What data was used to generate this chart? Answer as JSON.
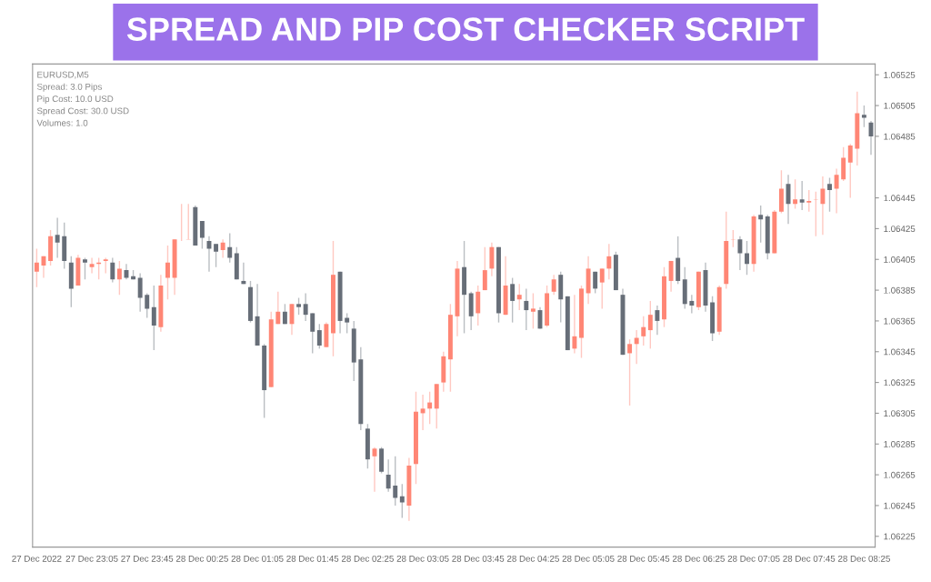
{
  "chart_data": {
    "type": "candlestick",
    "title": "SPREAD AND PIP COST CHECKER SCRIPT",
    "annotations": [
      "EURUSD,M5",
      "Spread: 3.0 Pips",
      "Pip Cost: 10.0 USD",
      "Spread Cost: 30.0 USD",
      "Volumes: 1.0"
    ],
    "categories": [
      "27 Dec 2022",
      null,
      null,
      null,
      null,
      null,
      null,
      null,
      "27 Dec 23:05",
      null,
      null,
      null,
      null,
      null,
      null,
      null,
      "27 Dec 23:45",
      null,
      null,
      null,
      null,
      null,
      null,
      null,
      "28 Dec 00:25",
      null,
      null,
      null,
      null,
      null,
      null,
      null,
      "28 Dec 01:05",
      null,
      null,
      null,
      null,
      null,
      null,
      null,
      "28 Dec 01:45",
      null,
      null,
      null,
      null,
      null,
      null,
      null,
      "28 Dec 02:25",
      null,
      null,
      null,
      null,
      null,
      null,
      null,
      "28 Dec 03:05",
      null,
      null,
      null,
      null,
      null,
      null,
      null,
      "28 Dec 03:45",
      null,
      null,
      null,
      null,
      null,
      null,
      null,
      "28 Dec 04:25",
      null,
      null,
      null,
      null,
      null,
      null,
      null,
      "28 Dec 05:05",
      null,
      null,
      null,
      null,
      null,
      null,
      null,
      "28 Dec 05:45",
      null,
      null,
      null,
      null,
      null,
      null,
      null,
      "28 Dec 06:25",
      null,
      null,
      null,
      null,
      null,
      null,
      null,
      "28 Dec 07:05",
      null,
      null,
      null,
      null,
      null,
      null,
      null,
      "28 Dec 07:45",
      null,
      null,
      null,
      null,
      null,
      null,
      null,
      "28 Dec 08:25",
      null
    ],
    "ohlc": [
      [
        1.06397,
        1.06412,
        1.06387,
        1.06403
      ],
      [
        1.06401,
        1.06407,
        1.06393,
        1.06407
      ],
      [
        1.06404,
        1.06424,
        1.06401,
        1.0642
      ],
      [
        1.06421,
        1.06432,
        1.06406,
        1.06416
      ],
      [
        1.0642,
        1.06429,
        1.06399,
        1.06404
      ],
      [
        1.06403,
        1.06407,
        1.06374,
        1.06386
      ],
      [
        1.06388,
        1.06408,
        1.06388,
        1.06406
      ],
      [
        1.06405,
        1.06406,
        1.06392,
        1.06403
      ],
      [
        1.064,
        1.06406,
        1.06396,
        1.06402
      ],
      [
        1.06402,
        1.06406,
        1.06392,
        1.06403
      ],
      [
        1.06404,
        1.06406,
        1.06396,
        1.06405
      ],
      [
        1.06403,
        1.06406,
        1.0639,
        1.06392
      ],
      [
        1.06392,
        1.06404,
        1.06382,
        1.06399
      ],
      [
        1.06398,
        1.06402,
        1.06392,
        1.06393
      ],
      [
        1.06394,
        1.06398,
        1.06392,
        1.06392
      ],
      [
        1.06393,
        1.06396,
        1.06371,
        1.0638
      ],
      [
        1.06382,
        1.06383,
        1.06367,
        1.06373
      ],
      [
        1.06374,
        1.06388,
        1.06346,
        1.06362
      ],
      [
        1.06361,
        1.06395,
        1.06358,
        1.06388
      ],
      [
        1.06393,
        1.06414,
        1.06379,
        1.06403
      ],
      [
        1.06393,
        1.06418,
        1.06382,
        1.06418
      ],
      [
        1.06441,
        1.06441,
        1.06417,
        1.06441
      ],
      [
        1.06418,
        1.06441,
        1.06418,
        1.06418
      ],
      [
        1.06439,
        1.0644,
        1.06414,
        1.06414
      ],
      [
        1.0643,
        1.0643,
        1.06412,
        1.06419
      ],
      [
        1.06417,
        1.0642,
        1.06397,
        1.06412
      ],
      [
        1.06415,
        1.06415,
        1.064,
        1.0641
      ],
      [
        1.06411,
        1.06418,
        1.06406,
        1.06416
      ],
      [
        1.06413,
        1.06422,
        1.06403,
        1.06406
      ],
      [
        1.06409,
        1.06413,
        1.06392,
        1.06392
      ],
      [
        1.06391,
        1.06403,
        1.06389,
        1.06389
      ],
      [
        1.06387,
        1.06391,
        1.06364,
        1.06365
      ],
      [
        1.06368,
        1.06389,
        1.06349,
        1.06349
      ],
      [
        1.06349,
        1.0635,
        1.06302,
        1.0632
      ],
      [
        1.06322,
        1.06371,
        1.06322,
        1.06366
      ],
      [
        1.06363,
        1.06384,
        1.06363,
        1.06371
      ],
      [
        1.06371,
        1.06376,
        1.06363,
        1.06363
      ],
      [
        1.06363,
        1.06376,
        1.06356,
        1.06376
      ],
      [
        1.06376,
        1.0638,
        1.06369,
        1.06374
      ],
      [
        1.06376,
        1.06383,
        1.06365,
        1.06369
      ],
      [
        1.0637,
        1.0637,
        1.06344,
        1.06358
      ],
      [
        1.06359,
        1.06363,
        1.06347,
        1.06349
      ],
      [
        1.06348,
        1.06364,
        1.06348,
        1.06363
      ],
      [
        1.06357,
        1.06417,
        1.06342,
        1.06395
      ],
      [
        1.06397,
        1.06397,
        1.06357,
        1.06365
      ],
      [
        1.06367,
        1.0637,
        1.06357,
        1.06364
      ],
      [
        1.0636,
        1.06365,
        1.06326,
        1.06338
      ],
      [
        1.0634,
        1.06348,
        1.06294,
        1.06298
      ],
      [
        1.06295,
        1.06298,
        1.06269,
        1.06275
      ],
      [
        1.06277,
        1.06283,
        1.06254,
        1.06282
      ],
      [
        1.06282,
        1.06283,
        1.06266,
        1.06267
      ],
      [
        1.06265,
        1.06275,
        1.06254,
        1.06256
      ],
      [
        1.06258,
        1.06277,
        1.06245,
        1.0625
      ],
      [
        1.06251,
        1.06259,
        1.06237,
        1.06247
      ],
      [
        1.06245,
        1.06276,
        1.06235,
        1.06271
      ],
      [
        1.06272,
        1.06319,
        1.06259,
        1.06306
      ],
      [
        1.06305,
        1.06317,
        1.06294,
        1.06308
      ],
      [
        1.06308,
        1.06319,
        1.06298,
        1.06312
      ],
      [
        1.06308,
        1.06324,
        1.06295,
        1.06324
      ],
      [
        1.06325,
        1.06345,
        1.06319,
        1.06342
      ],
      [
        1.0634,
        1.06376,
        1.06319,
        1.06369
      ],
      [
        1.06368,
        1.06404,
        1.06355,
        1.06399
      ],
      [
        1.064,
        1.06417,
        1.06357,
        1.06382
      ],
      [
        1.06383,
        1.06384,
        1.06359,
        1.06368
      ],
      [
        1.0637,
        1.06388,
        1.06362,
        1.06384
      ],
      [
        1.06385,
        1.06413,
        1.06385,
        1.06398
      ],
      [
        1.06399,
        1.06416,
        1.06394,
        1.06413
      ],
      [
        1.06413,
        1.06413,
        1.06364,
        1.0637
      ],
      [
        1.06369,
        1.06407,
        1.06369,
        1.06388
      ],
      [
        1.06389,
        1.06393,
        1.06364,
        1.06378
      ],
      [
        1.06379,
        1.06389,
        1.06372,
        1.06382
      ],
      [
        1.06378,
        1.06386,
        1.06359,
        1.06372
      ],
      [
        1.06371,
        1.06383,
        1.0636,
        1.06373
      ],
      [
        1.06372,
        1.06374,
        1.0636,
        1.0636
      ],
      [
        1.06362,
        1.06388,
        1.06361,
        1.06383
      ],
      [
        1.06384,
        1.06395,
        1.06382,
        1.06392
      ],
      [
        1.06395,
        1.06397,
        1.06364,
        1.06379
      ],
      [
        1.06381,
        1.06381,
        1.06346,
        1.06346
      ],
      [
        1.06347,
        1.06382,
        1.06344,
        1.06355
      ],
      [
        1.06354,
        1.06388,
        1.06341,
        1.06386
      ],
      [
        1.06383,
        1.06407,
        1.06376,
        1.06399
      ],
      [
        1.06397,
        1.06397,
        1.06383,
        1.06386
      ],
      [
        1.0639,
        1.06399,
        1.06373,
        1.06399
      ],
      [
        1.06399,
        1.06415,
        1.06392,
        1.06407
      ],
      [
        1.06408,
        1.0641,
        1.06385,
        1.06385
      ],
      [
        1.06382,
        1.06386,
        1.06343,
        1.06343
      ],
      [
        1.06344,
        1.06353,
        1.0631,
        1.0635
      ],
      [
        1.0635,
        1.06359,
        1.06337,
        1.06354
      ],
      [
        1.06355,
        1.06368,
        1.06349,
        1.06361
      ],
      [
        1.06359,
        1.06378,
        1.06347,
        1.06369
      ],
      [
        1.06372,
        1.06375,
        1.06356,
        1.06365
      ],
      [
        1.06366,
        1.064,
        1.06361,
        1.06394
      ],
      [
        1.06391,
        1.06404,
        1.06384,
        1.06404
      ],
      [
        1.06406,
        1.0642,
        1.06389,
        1.06391
      ],
      [
        1.06392,
        1.064,
        1.06373,
        1.06376
      ],
      [
        1.06378,
        1.06382,
        1.0637,
        1.06375
      ],
      [
        1.06374,
        1.06397,
        1.06372,
        1.06397
      ],
      [
        1.06398,
        1.06403,
        1.06371,
        1.06375
      ],
      [
        1.06377,
        1.06381,
        1.06352,
        1.06357
      ],
      [
        1.06358,
        1.06388,
        1.06356,
        1.06387
      ],
      [
        1.06389,
        1.06436,
        1.06386,
        1.06417
      ],
      [
        1.06418,
        1.06424,
        1.06413,
        1.06418
      ],
      [
        1.06418,
        1.0642,
        1.06398,
        1.06409
      ],
      [
        1.06409,
        1.06417,
        1.06395,
        1.06402
      ],
      [
        1.06402,
        1.06434,
        1.06397,
        1.06433
      ],
      [
        1.06434,
        1.0644,
        1.06416,
        1.06431
      ],
      [
        1.06433,
        1.06434,
        1.06405,
        1.06409
      ],
      [
        1.06409,
        1.06437,
        1.06409,
        1.06436
      ],
      [
        1.06436,
        1.06463,
        1.06435,
        1.06451
      ],
      [
        1.06454,
        1.0646,
        1.06428,
        1.06441
      ],
      [
        1.06441,
        1.06457,
        1.06438,
        1.06444
      ],
      [
        1.06444,
        1.06456,
        1.06437,
        1.06442
      ],
      [
        1.06442,
        1.0645,
        1.06436,
        1.06443
      ],
      [
        1.06444,
        1.06449,
        1.0642,
        1.06444
      ],
      [
        1.06441,
        1.06459,
        1.06421,
        1.06451
      ],
      [
        1.06454,
        1.06458,
        1.06436,
        1.0645
      ],
      [
        1.06451,
        1.06464,
        1.06435,
        1.0646
      ],
      [
        1.06457,
        1.06478,
        1.06456,
        1.06471
      ],
      [
        1.06468,
        1.0648,
        1.06445,
        1.06479
      ],
      [
        1.06477,
        1.06514,
        1.06466,
        1.065
      ],
      [
        1.06499,
        1.06505,
        1.06491,
        1.06497
      ],
      [
        1.06494,
        1.06495,
        1.06473,
        1.06485
      ]
    ],
    "colors": [
      "#ff8675",
      "#ff8675",
      "#ff8675",
      "#676e78",
      "#676e78",
      "#676e78",
      "#ff8675",
      "#676e78",
      "#ff8675",
      "#ff8675",
      "#ff8675",
      "#676e78",
      "#ff8675",
      "#676e78",
      "#676e78",
      "#676e78",
      "#676e78",
      "#676e78",
      "#ff8675",
      "#ff8675",
      "#ff8675",
      "#ff8675",
      "#ff8675",
      "#676e78",
      "#676e78",
      "#676e78",
      "#676e78",
      "#ff8675",
      "#676e78",
      "#676e78",
      "#676e78",
      "#676e78",
      "#676e78",
      "#676e78",
      "#ff8675",
      "#ff8675",
      "#676e78",
      "#ff8675",
      "#676e78",
      "#676e78",
      "#676e78",
      "#676e78",
      "#ff8675",
      "#ff8675",
      "#676e78",
      "#676e78",
      "#676e78",
      "#676e78",
      "#676e78",
      "#ff8675",
      "#676e78",
      "#676e78",
      "#676e78",
      "#676e78",
      "#ff8675",
      "#ff8675",
      "#ff8675",
      "#ff8675",
      "#ff8675",
      "#ff8675",
      "#ff8675",
      "#ff8675",
      "#676e78",
      "#676e78",
      "#ff8675",
      "#ff8675",
      "#ff8675",
      "#676e78",
      "#ff8675",
      "#676e78",
      "#ff8675",
      "#676e78",
      "#ff8675",
      "#676e78",
      "#ff8675",
      "#ff8675",
      "#676e78",
      "#676e78",
      "#ff8675",
      "#ff8675",
      "#ff8675",
      "#676e78",
      "#ff8675",
      "#ff8675",
      "#676e78",
      "#676e78",
      "#ff8675",
      "#ff8675",
      "#ff8675",
      "#ff8675",
      "#676e78",
      "#ff8675",
      "#ff8675",
      "#676e78",
      "#676e78",
      "#676e78",
      "#ff8675",
      "#676e78",
      "#676e78",
      "#ff8675",
      "#ff8675",
      "#ff8675",
      "#676e78",
      "#676e78",
      "#ff8675",
      "#676e78",
      "#676e78",
      "#ff8675",
      "#ff8675",
      "#676e78",
      "#ff8675",
      "#676e78",
      "#ff8675",
      "#ff8675",
      "#ff8675",
      "#676e78",
      "#ff8675",
      "#ff8675",
      "#ff8675",
      "#ff8675",
      "#676e78",
      "#676e78"
    ],
    "ylim": [
      1.06218,
      1.06532
    ],
    "yticks": [
      1.06225,
      1.06245,
      1.06265,
      1.06285,
      1.06305,
      1.06325,
      1.06345,
      1.06365,
      1.06385,
      1.06405,
      1.06425,
      1.06445,
      1.06485,
      1.06505,
      1.06525
    ],
    "grid": false
  }
}
